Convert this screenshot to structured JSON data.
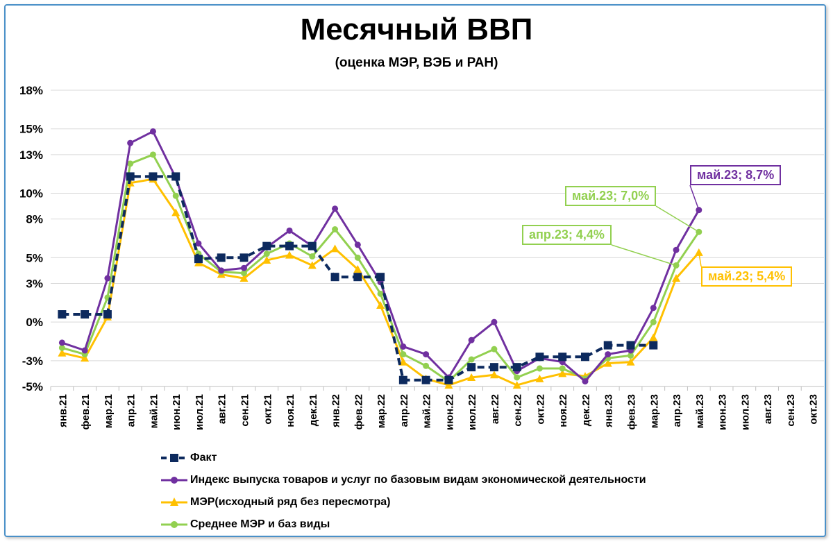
{
  "chart_data": {
    "type": "line",
    "title": "Месячный ВВП",
    "subtitle": "(оценка МЭР, ВЭБ и РАН)",
    "xlabel": "",
    "ylabel": "",
    "ylim": [
      -5,
      18
    ],
    "y_ticks": [
      18,
      15,
      13,
      10,
      8,
      5,
      3,
      0,
      -3,
      -5
    ],
    "y_tick_labels": [
      "18%",
      "15%",
      "13%",
      "10%",
      "8%",
      "5%",
      "3%",
      "0%",
      "-3%",
      "-5%"
    ],
    "grid": true,
    "legend_position": "bottom",
    "categories": [
      "янв.21",
      "фев.21",
      "мар.21",
      "апр.21",
      "май.21",
      "июн.21",
      "июл.21",
      "авг.21",
      "сен.21",
      "окт.21",
      "ноя.21",
      "дек.21",
      "янв.22",
      "фев.22",
      "мар.22",
      "апр.22",
      "май.22",
      "июн.22",
      "июл.22",
      "авг.22",
      "сен.22",
      "окт.22",
      "ноя.22",
      "дек.22",
      "янв.23",
      "фев.23",
      "мар.23",
      "апр.23",
      "май.23",
      "июн.23",
      "июл.23",
      "авг.23",
      "сен.23",
      "окт.23"
    ],
    "series": [
      {
        "name": "Факт",
        "color": "#0d2a5e",
        "marker": "square",
        "dashed": true,
        "values": [
          0.6,
          0.6,
          0.6,
          11.3,
          11.3,
          11.3,
          4.9,
          5.0,
          5.0,
          5.9,
          5.9,
          5.9,
          3.5,
          3.5,
          3.5,
          -4.5,
          -4.5,
          -4.5,
          -3.5,
          -3.5,
          -3.5,
          -2.7,
          -2.7,
          -2.7,
          -1.8,
          -1.8,
          -1.8,
          null,
          null,
          null,
          null,
          null,
          null,
          null
        ]
      },
      {
        "name": "Индекс выпуска товаров и услуг по базовым видам экономической деятельности",
        "color": "#7030a0",
        "marker": "circle",
        "dashed": false,
        "values": [
          -1.6,
          -2.2,
          3.4,
          13.9,
          14.8,
          11.2,
          6.1,
          4.0,
          4.2,
          5.8,
          7.1,
          5.9,
          8.8,
          6.0,
          3.1,
          -1.9,
          -2.5,
          -4.3,
          -1.4,
          0.0,
          -3.8,
          -2.8,
          -3.1,
          -4.6,
          -2.5,
          -2.2,
          1.1,
          5.6,
          8.7,
          null,
          null,
          null,
          null,
          null
        ]
      },
      {
        "name": "МЭР(исходный ряд без пересмотра)",
        "color": "#ffc000",
        "marker": "triangle",
        "dashed": false,
        "values": [
          -2.4,
          -2.8,
          0.4,
          10.8,
          11.1,
          8.5,
          4.6,
          3.7,
          3.4,
          4.8,
          5.2,
          4.4,
          5.7,
          4.1,
          1.3,
          -3.1,
          -4.4,
          -4.9,
          -4.3,
          -4.1,
          -4.9,
          -4.4,
          -4.0,
          -4.2,
          -3.2,
          -3.1,
          -1.2,
          3.4,
          5.4,
          null,
          null,
          null,
          null,
          null
        ]
      },
      {
        "name": "Среднее МЭР и баз виды",
        "color": "#92d050",
        "marker": "circle",
        "dashed": false,
        "values": [
          -2.0,
          -2.5,
          1.9,
          12.3,
          13.0,
          9.8,
          5.3,
          3.9,
          3.8,
          5.3,
          6.1,
          5.1,
          7.2,
          5.0,
          2.2,
          -2.5,
          -3.4,
          -4.6,
          -2.9,
          -2.1,
          -4.3,
          -3.6,
          -3.6,
          -4.4,
          -2.8,
          -2.6,
          0.0,
          4.4,
          7.0,
          null,
          null,
          null,
          null,
          null
        ]
      }
    ],
    "annotations": [
      {
        "text": "май.23; 8,7%",
        "color": "#7030a0"
      },
      {
        "text": "май.23; 7,0%",
        "color": "#92d050"
      },
      {
        "text": "апр.23; 4,4%",
        "color": "#92d050"
      },
      {
        "text": "май.23; 5,4%",
        "color": "#ffc000"
      }
    ]
  }
}
